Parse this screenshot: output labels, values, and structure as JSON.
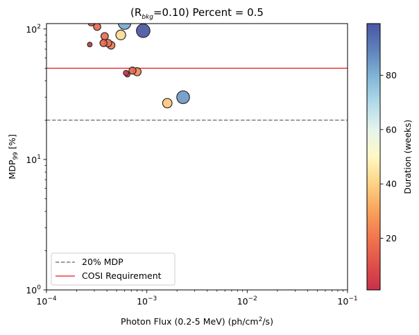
{
  "chart_data": {
    "type": "scatter",
    "title": {
      "prefix": "(R",
      "sub": "bkg",
      "suffix": "=0.10) Percent = 0.5"
    },
    "xlabel": {
      "prefix": "Photon Flux (0.2-5 MeV) (ph/cm",
      "sup": "2",
      "suffix": "/s)"
    },
    "ylabel": {
      "prefix": "MDP",
      "sub": "99",
      "suffix": " [%]"
    },
    "xscale": "log",
    "yscale": "log",
    "xlim": [
      0.0001,
      0.1
    ],
    "ylim": [
      1,
      110
    ],
    "x_ticks": [
      {
        "value": 0.0001,
        "base": "10",
        "exp": "−4"
      },
      {
        "value": 0.001,
        "base": "10",
        "exp": "−3"
      },
      {
        "value": 0.01,
        "base": "10",
        "exp": "−2"
      },
      {
        "value": 0.1,
        "base": "10",
        "exp": "−1"
      }
    ],
    "y_ticks": [
      {
        "value": 1,
        "base": "10",
        "exp": "0"
      },
      {
        "value": 10,
        "base": "10",
        "exp": "1"
      },
      {
        "value": 100,
        "base": "10",
        "exp": "2"
      }
    ],
    "grid": false,
    "legend_position": "lower-left",
    "lines": [
      {
        "name": "20% MDP",
        "y": 20,
        "style": "dashed",
        "color": "#7f7f7f"
      },
      {
        "name": "COSI Requirement",
        "y": 50,
        "style": "solid",
        "color": "#e41a1c"
      }
    ],
    "colorbar": {
      "label": "Duration (weeks)",
      "range": [
        1,
        99
      ],
      "ticks": [
        {
          "value": 20,
          "label": "20"
        },
        {
          "value": 40,
          "label": "40"
        },
        {
          "value": 60,
          "label": "60"
        },
        {
          "value": 80,
          "label": "80"
        }
      ],
      "colormap": "RdYlBu"
    },
    "points": [
      {
        "x": 0.00027,
        "y": 76,
        "duration": 3
      },
      {
        "x": 0.00028,
        "y": 112,
        "duration": 14
      },
      {
        "x": 0.00032,
        "y": 104,
        "duration": 17
      },
      {
        "x": 0.00037,
        "y": 78,
        "duration": 16
      },
      {
        "x": 0.00038,
        "y": 88,
        "duration": 18
      },
      {
        "x": 0.00041,
        "y": 78,
        "duration": 19
      },
      {
        "x": 0.00044,
        "y": 75,
        "duration": 21
      },
      {
        "x": 0.00055,
        "y": 90,
        "duration": 42
      },
      {
        "x": 0.0006,
        "y": 111,
        "duration": 82
      },
      {
        "x": 0.00062,
        "y": 46,
        "duration": 5
      },
      {
        "x": 0.00064,
        "y": 45,
        "duration": 6
      },
      {
        "x": 0.00072,
        "y": 48,
        "duration": 16
      },
      {
        "x": 0.0008,
        "y": 47,
        "duration": 24
      },
      {
        "x": 0.00092,
        "y": 97,
        "duration": 99
      },
      {
        "x": 0.0016,
        "y": 27,
        "duration": 38
      },
      {
        "x": 0.0023,
        "y": 30,
        "duration": 85
      }
    ]
  }
}
